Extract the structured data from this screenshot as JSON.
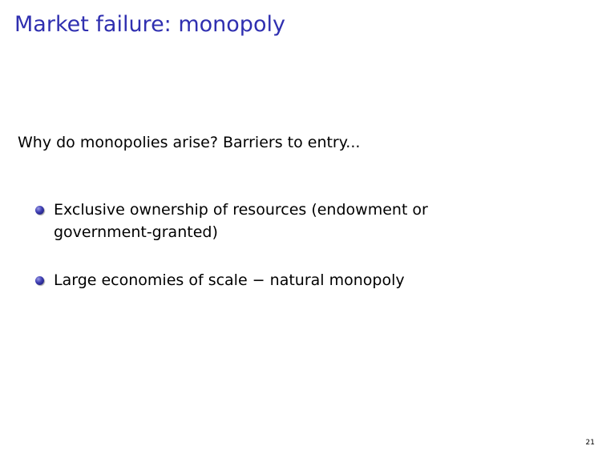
{
  "slide": {
    "title": "Market failure: monopoly",
    "intro": "Why do monopolies arise? Barriers to entry...",
    "bullets": [
      {
        "text": "Exclusive ownership of resources (endowment or government-granted)"
      },
      {
        "text": "Large economies of scale − natural monopoly"
      }
    ],
    "page_number": "21"
  },
  "colors": {
    "title": "#2f2fb0",
    "bullet": "#3b3bb0"
  }
}
